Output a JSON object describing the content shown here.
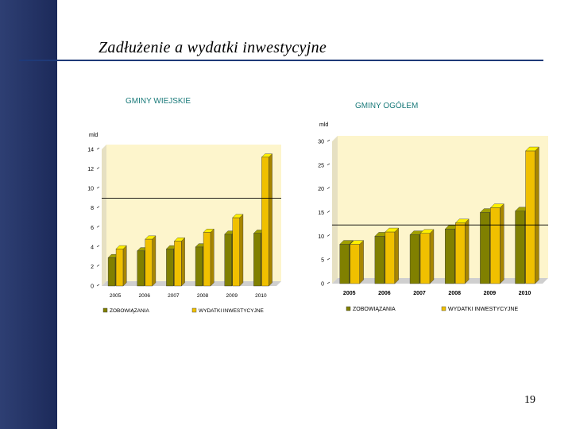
{
  "slide": {
    "title": "Zadłużenie a wydatki inwestycyjne",
    "page_number": "19"
  },
  "colors": {
    "sidebar": "#2e3f73",
    "title_rule": "#1f3a78",
    "series_debt": "#808000",
    "series_invest": "#f0c000",
    "plot_bg": "#fdf5cc",
    "chart_title": "#1a7a7a"
  },
  "chart_data": [
    {
      "type": "bar",
      "title": "GMINY WIEJSKIE",
      "unit_label": "mld",
      "categories": [
        "2005",
        "2006",
        "2007",
        "2008",
        "2009",
        "2010"
      ],
      "ylim": [
        0,
        14
      ],
      "yticks": [
        "0",
        "2",
        "4",
        "6",
        "8",
        "10",
        "12",
        "14"
      ],
      "series": [
        {
          "name": "ZOBOWIĄZANIA",
          "values": [
            2.9,
            3.6,
            3.8,
            4.0,
            5.3,
            5.4
          ]
        },
        {
          "name": "WYDATKI INWESTYCYJNE",
          "values": [
            3.8,
            4.8,
            4.6,
            5.5,
            7.0,
            13.2
          ]
        }
      ],
      "reference_line": 8.5,
      "grid": false,
      "legend_position": "bottom"
    },
    {
      "type": "bar",
      "title": "GMINY OGÓŁEM",
      "unit_label": "mld",
      "categories": [
        "2005",
        "2006",
        "2007",
        "2008",
        "2009",
        "2010"
      ],
      "ylim": [
        0,
        30
      ],
      "yticks": [
        "0",
        "5",
        "10",
        "15",
        "20",
        "25",
        "30"
      ],
      "series": [
        {
          "name": "ZOBOWIĄZANIA",
          "values": [
            8.3,
            10.0,
            10.3,
            11.5,
            15.0,
            15.3
          ]
        },
        {
          "name": "WYDATKI INWESTYCYJNE",
          "values": [
            8.3,
            10.9,
            10.6,
            12.8,
            16.0,
            28.0
          ]
        }
      ],
      "reference_line": 11.2,
      "grid": false,
      "legend_position": "bottom"
    }
  ]
}
